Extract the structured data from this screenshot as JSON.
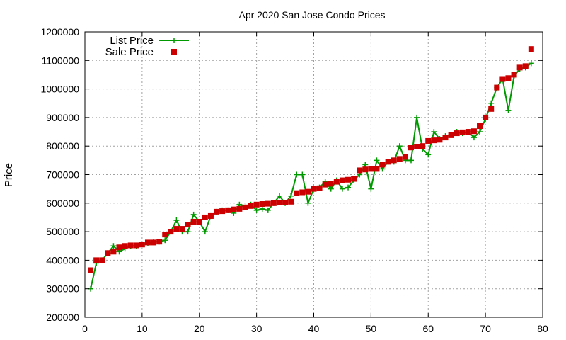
{
  "chart_data": {
    "type": "line",
    "title": "Apr 2020 San Jose Condo Prices",
    "xlabel": "",
    "ylabel": "Price",
    "xlim": [
      0,
      80
    ],
    "ylim": [
      200000,
      1200000
    ],
    "xticks": [
      0,
      10,
      20,
      30,
      40,
      50,
      60,
      70,
      80
    ],
    "yticks": [
      200000,
      300000,
      400000,
      500000,
      600000,
      700000,
      800000,
      900000,
      1000000,
      1100000,
      1200000
    ],
    "grid": true,
    "legend_position": "top-left",
    "series": [
      {
        "name": "List Price",
        "style": "line-plus",
        "color": "#009900",
        "x": [
          1,
          2,
          3,
          4,
          5,
          6,
          7,
          8,
          9,
          10,
          11,
          12,
          13,
          14,
          15,
          16,
          17,
          18,
          19,
          20,
          21,
          22,
          23,
          24,
          25,
          26,
          27,
          28,
          29,
          30,
          31,
          32,
          33,
          34,
          35,
          36,
          37,
          38,
          39,
          40,
          41,
          42,
          43,
          44,
          45,
          46,
          47,
          48,
          49,
          50,
          51,
          52,
          53,
          54,
          55,
          56,
          57,
          58,
          59,
          60,
          61,
          62,
          63,
          64,
          65,
          66,
          67,
          68,
          69,
          70,
          71,
          72,
          73,
          74,
          75,
          76,
          77,
          78
        ],
        "y": [
          300000,
          390000,
          400000,
          425000,
          450000,
          430000,
          440000,
          450000,
          450000,
          455000,
          460000,
          465000,
          465000,
          470000,
          500000,
          540000,
          500000,
          500000,
          560000,
          535000,
          500000,
          555000,
          570000,
          575000,
          575000,
          565000,
          595000,
          585000,
          595000,
          575000,
          580000,
          575000,
          600000,
          625000,
          600000,
          625000,
          700000,
          700000,
          600000,
          650000,
          655000,
          675000,
          650000,
          680000,
          650000,
          655000,
          680000,
          700000,
          735000,
          650000,
          750000,
          720000,
          745000,
          745000,
          800000,
          750000,
          750000,
          900000,
          790000,
          770000,
          850000,
          825000,
          835000,
          840000,
          850000,
          845000,
          850000,
          830000,
          850000,
          895000,
          950000,
          1005000,
          1035000,
          925000,
          1045000,
          1070000,
          1075000,
          1090000
        ]
      },
      {
        "name": "Sale Price",
        "style": "square",
        "color": "#cc0000",
        "x": [
          1,
          2,
          3,
          4,
          5,
          6,
          7,
          8,
          9,
          10,
          11,
          12,
          13,
          14,
          15,
          16,
          17,
          18,
          19,
          20,
          21,
          22,
          23,
          24,
          25,
          26,
          27,
          28,
          29,
          30,
          31,
          32,
          33,
          34,
          35,
          36,
          37,
          38,
          39,
          40,
          41,
          42,
          43,
          44,
          45,
          46,
          47,
          48,
          49,
          50,
          51,
          52,
          53,
          54,
          55,
          56,
          57,
          58,
          59,
          60,
          61,
          62,
          63,
          64,
          65,
          66,
          67,
          68,
          69,
          70,
          71,
          72,
          73,
          74,
          75,
          76,
          77,
          78
        ],
        "y": [
          365000,
          400000,
          400000,
          425000,
          430000,
          445000,
          450000,
          452000,
          452000,
          455000,
          462000,
          462000,
          465000,
          490000,
          500000,
          510000,
          510000,
          525000,
          535000,
          535000,
          550000,
          555000,
          570000,
          572000,
          575000,
          578000,
          580000,
          585000,
          590000,
          595000,
          597000,
          598000,
          600000,
          602000,
          602000,
          605000,
          635000,
          638000,
          640000,
          650000,
          652000,
          665000,
          668000,
          675000,
          680000,
          682000,
          685000,
          715000,
          718000,
          720000,
          720000,
          735000,
          745000,
          750000,
          755000,
          762000,
          795000,
          798000,
          800000,
          818000,
          820000,
          822000,
          830000,
          838000,
          845000,
          848000,
          850000,
          852000,
          870000,
          900000,
          930000,
          1005000,
          1035000,
          1038000,
          1050000,
          1075000,
          1080000,
          1140000
        ]
      }
    ]
  }
}
